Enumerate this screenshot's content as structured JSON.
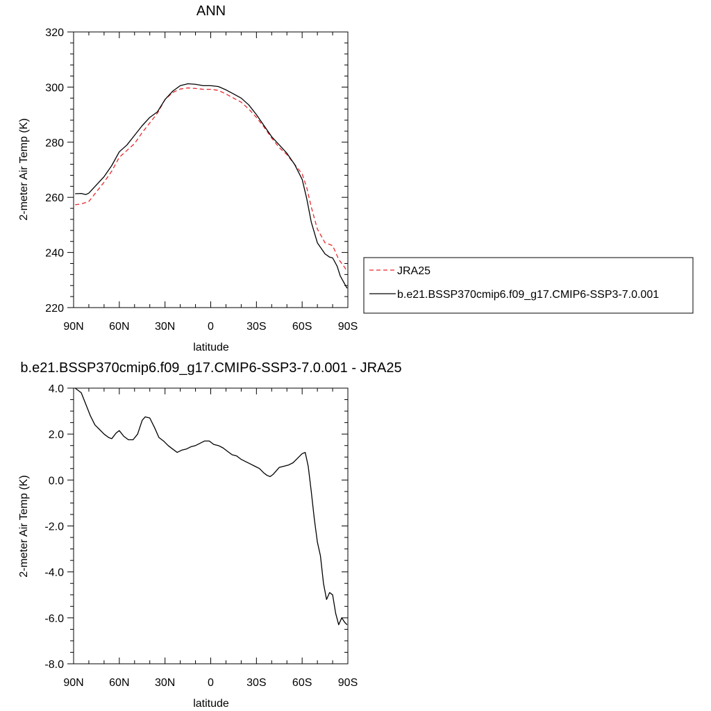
{
  "chart_data": [
    {
      "type": "line",
      "title": "ANN",
      "xlabel": "latitude",
      "ylabel": "2-meter Air Temp (K)",
      "xlim": [
        90,
        -90
      ],
      "ylim": [
        220,
        320
      ],
      "x_ticks": [
        90,
        60,
        30,
        0,
        -30,
        -60,
        -90
      ],
      "x_tick_labels": [
        "90N",
        "60N",
        "30N",
        "0",
        "30S",
        "60S",
        "90S"
      ],
      "y_ticks": [
        220,
        240,
        260,
        280,
        300,
        320
      ],
      "y_tick_labels": [
        "220",
        "240",
        "260",
        "280",
        "300",
        "320"
      ],
      "legend_position": "right",
      "series": [
        {
          "name": "JRA25",
          "color": "#e8262b",
          "dash": "dashed",
          "x": [
            89,
            85,
            80,
            75,
            70,
            65,
            60,
            55,
            50,
            45,
            40,
            35,
            30,
            25,
            20,
            15,
            10,
            5,
            0,
            -5,
            -10,
            -15,
            -20,
            -25,
            -30,
            -35,
            -40,
            -45,
            -50,
            -55,
            -60,
            -63,
            -66,
            -70,
            -75,
            -80,
            -84,
            -88,
            -89.5
          ],
          "values": [
            257.3,
            257.6,
            258.5,
            262,
            265.5,
            269.5,
            274.5,
            277,
            279.5,
            283.5,
            287,
            290.5,
            295.5,
            298,
            299.3,
            299.7,
            299.5,
            299.2,
            299.2,
            298.8,
            297.5,
            296,
            294.5,
            292,
            289,
            285.5,
            281.5,
            278,
            275.5,
            272,
            268.5,
            263.5,
            256.5,
            248.5,
            243.5,
            242.5,
            237.5,
            234.5,
            233
          ]
        },
        {
          "name": "b.e21.BSSP370cmip6.f09_g17.CMIP6-SSP3-7.0.001",
          "color": "#000000",
          "dash": "solid",
          "x": [
            89,
            85,
            82,
            80,
            75,
            70,
            65,
            60,
            55,
            50,
            45,
            40,
            35,
            30,
            25,
            20,
            15,
            10,
            5,
            0,
            -5,
            -10,
            -15,
            -20,
            -25,
            -30,
            -35,
            -40,
            -45,
            -50,
            -55,
            -60,
            -63,
            -66,
            -70,
            -75,
            -78,
            -80,
            -83,
            -85,
            -88,
            -89.5
          ],
          "values": [
            261.3,
            261.4,
            261,
            261.5,
            264.5,
            267.5,
            271.5,
            276.5,
            279,
            282.5,
            286,
            289,
            291,
            295.5,
            298.5,
            300.5,
            301.2,
            301,
            300.5,
            300.5,
            300.2,
            299,
            297.5,
            296,
            293.5,
            290,
            286,
            282,
            279,
            276,
            272,
            266.5,
            259.5,
            251,
            243.5,
            239.5,
            238.3,
            238,
            235,
            231.5,
            228.5,
            227
          ]
        }
      ]
    },
    {
      "type": "line",
      "title": "b.e21.BSSP370cmip6.f09_g17.CMIP6-SSP3-7.0.001 - JRA25",
      "xlabel": "latitude",
      "ylabel": "2-meter Air Temp (K)",
      "xlim": [
        90,
        -90
      ],
      "ylim": [
        -8,
        4
      ],
      "x_ticks": [
        90,
        60,
        30,
        0,
        -30,
        -60,
        -90
      ],
      "x_tick_labels": [
        "90N",
        "60N",
        "30N",
        "0",
        "30S",
        "60S",
        "90S"
      ],
      "y_ticks": [
        -8,
        -6,
        -4,
        -2,
        0,
        2,
        4
      ],
      "y_tick_labels": [
        "-8.0",
        "-6.0",
        "-4.0",
        "-2.0",
        "0.0",
        "2.0",
        "4.0"
      ],
      "series": [
        {
          "color": "#000000",
          "dash": "solid",
          "x": [
            89,
            85,
            82,
            79,
            76,
            73,
            70,
            67,
            65,
            62,
            60,
            57,
            54,
            51,
            48,
            45,
            43,
            40,
            37,
            34,
            31,
            28,
            25,
            22,
            19,
            16,
            13,
            10,
            7,
            4,
            1,
            -2,
            -5,
            -8,
            -11,
            -14,
            -17,
            -20,
            -23,
            -26,
            -29,
            -32,
            -35,
            -37,
            -39,
            -41,
            -43,
            -45,
            -48,
            -51,
            -54,
            -57,
            -60,
            -62,
            -64,
            -66,
            -68,
            -70,
            -72,
            -74,
            -76,
            -78,
            -80,
            -82,
            -84,
            -86,
            -88,
            -89.5
          ],
          "values": [
            4.0,
            3.8,
            3.3,
            2.8,
            2.4,
            2.2,
            2.0,
            1.85,
            1.8,
            2.05,
            2.15,
            1.9,
            1.75,
            1.75,
            2.0,
            2.6,
            2.75,
            2.7,
            2.3,
            1.85,
            1.7,
            1.5,
            1.35,
            1.2,
            1.3,
            1.35,
            1.45,
            1.5,
            1.6,
            1.7,
            1.7,
            1.55,
            1.5,
            1.4,
            1.25,
            1.1,
            1.05,
            0.9,
            0.8,
            0.7,
            0.6,
            0.5,
            0.3,
            0.2,
            0.15,
            0.25,
            0.4,
            0.55,
            0.6,
            0.65,
            0.75,
            0.95,
            1.15,
            1.2,
            0.6,
            -0.5,
            -1.7,
            -2.7,
            -3.3,
            -4.5,
            -5.2,
            -4.9,
            -5.0,
            -5.8,
            -6.3,
            -6.0,
            -6.2,
            -6.3
          ]
        }
      ]
    }
  ],
  "legend": {
    "entries": [
      {
        "label": "JRA25",
        "color": "#e8262b",
        "dash": "dashed"
      },
      {
        "label": "b.e21.BSSP370cmip6.f09_g17.CMIP6-SSP3-7.0.001",
        "color": "#000000",
        "dash": "solid"
      }
    ]
  }
}
